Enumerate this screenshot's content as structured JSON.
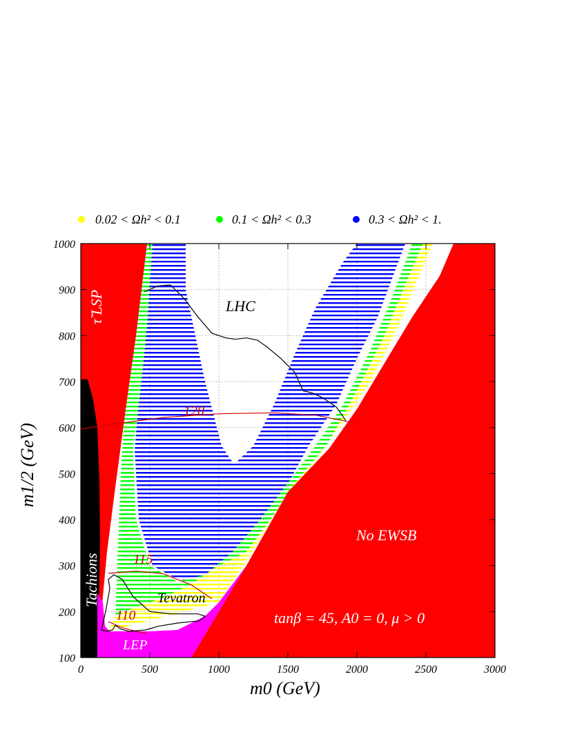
{
  "legend": {
    "items": [
      {
        "label": "0.02 < Ωh² < 0.1",
        "color": "#ffff00"
      },
      {
        "label": "0.1 < Ωh² < 0.3",
        "color": "#00ff00"
      },
      {
        "label": "0.3 < Ωh² < 1.",
        "color": "#0000ff"
      }
    ]
  },
  "chart_data": {
    "type": "area",
    "title": "",
    "xlabel": "m0 (GeV)",
    "ylabel": "m1/2 (GeV)",
    "xlim": [
      0,
      3000
    ],
    "ylim": [
      100,
      1000
    ],
    "x_ticks": [
      0,
      500,
      1000,
      1500,
      2000,
      2500,
      3000
    ],
    "y_ticks": [
      100,
      200,
      300,
      400,
      500,
      600,
      700,
      800,
      900,
      1000
    ],
    "grid": true,
    "legend_position": "top",
    "colors": {
      "excluded": "#ff0000",
      "tachyons": "#000000",
      "lep": "#ff00ff",
      "omega_low": "#ffff00",
      "omega_mid": "#00ff00",
      "omega_high": "#0000ff",
      "higgs_contours": "#cc0000",
      "reach_contours": "#000000"
    },
    "region_labels": {
      "stau_lsp": "τ̃ LSP",
      "tachyons": "Tachions",
      "no_ewsb": "No EWSB",
      "lep": "LEP",
      "lhc": "LHC",
      "tevatron": "Tevatron",
      "parameters": "tanβ = 45, A0 = 0, μ > 0"
    },
    "higgs_mass_contours": [
      {
        "label": "110",
        "points": [
          [
            200,
            178
          ],
          [
            300,
            165
          ],
          [
            400,
            157
          ],
          [
            480,
            153
          ]
        ]
      },
      {
        "label": "115",
        "points": [
          [
            200,
            283
          ],
          [
            400,
            288
          ],
          [
            600,
            282
          ],
          [
            800,
            258
          ],
          [
            950,
            228
          ]
        ]
      },
      {
        "label": "120",
        "points": [
          [
            0,
            597
          ],
          [
            300,
            610
          ],
          [
            600,
            622
          ],
          [
            1000,
            630
          ],
          [
            1400,
            632
          ],
          [
            1700,
            627
          ],
          [
            1950,
            612
          ],
          [
            2000,
            612
          ]
        ]
      }
    ],
    "regions": {
      "stau_lsp": [
        [
          0,
          1000
        ],
        [
          480,
          1000
        ],
        [
          400,
          800
        ],
        [
          330,
          650
        ],
        [
          250,
          470
        ],
        [
          190,
          330
        ],
        [
          150,
          200
        ],
        [
          130,
          100
        ],
        [
          0,
          100
        ]
      ],
      "tachyons": [
        [
          0,
          100
        ],
        [
          120,
          100
        ],
        [
          130,
          200
        ],
        [
          140,
          350
        ],
        [
          135,
          480
        ],
        [
          120,
          600
        ],
        [
          90,
          660
        ],
        [
          50,
          705
        ],
        [
          0,
          705
        ]
      ],
      "no_ewsb": [
        [
          3000,
          1000
        ],
        [
          3000,
          100
        ],
        [
          800,
          100
        ],
        [
          1200,
          300
        ],
        [
          1500,
          460
        ],
        [
          1800,
          555
        ],
        [
          2000,
          640
        ],
        [
          2200,
          740
        ],
        [
          2400,
          840
        ],
        [
          2600,
          930
        ],
        [
          2700,
          1000
        ]
      ],
      "lep": [
        [
          120,
          100
        ],
        [
          800,
          100
        ],
        [
          1200,
          300
        ],
        [
          1000,
          220
        ],
        [
          900,
          190
        ],
        [
          700,
          160
        ],
        [
          500,
          157
        ],
        [
          300,
          157
        ],
        [
          210,
          157
        ],
        [
          175,
          168
        ],
        [
          160,
          220
        ],
        [
          120,
          240
        ]
      ],
      "omega_low": [
        [
          200,
          157
        ],
        [
          1000,
          220
        ],
        [
          1200,
          310
        ],
        [
          1500,
          460
        ],
        [
          1800,
          570
        ],
        [
          2100,
          700
        ],
        [
          2300,
          820
        ],
        [
          2450,
          930
        ],
        [
          2550,
          1000
        ],
        [
          2480,
          1000
        ],
        [
          2350,
          910
        ],
        [
          2200,
          800
        ],
        [
          2000,
          680
        ],
        [
          1780,
          560
        ],
        [
          1550,
          470
        ],
        [
          1350,
          390
        ],
        [
          1200,
          330
        ],
        [
          1000,
          300
        ],
        [
          800,
          260
        ],
        [
          600,
          230
        ],
        [
          400,
          210
        ],
        [
          250,
          190
        ]
      ],
      "omega_mid": [
        [
          250,
          190
        ],
        [
          400,
          210
        ],
        [
          600,
          230
        ],
        [
          800,
          260
        ],
        [
          1000,
          300
        ],
        [
          1200,
          330
        ],
        [
          1350,
          390
        ],
        [
          1550,
          470
        ],
        [
          1780,
          560
        ],
        [
          2000,
          680
        ],
        [
          2200,
          800
        ],
        [
          2350,
          910
        ],
        [
          2480,
          1000
        ],
        [
          2400,
          1000
        ],
        [
          2250,
          880
        ],
        [
          2100,
          770
        ],
        [
          1900,
          650
        ],
        [
          1700,
          560
        ],
        [
          1500,
          480
        ],
        [
          1300,
          400
        ],
        [
          1100,
          330
        ],
        [
          900,
          280
        ],
        [
          700,
          265
        ],
        [
          500,
          300
        ],
        [
          400,
          400
        ],
        [
          380,
          550
        ],
        [
          440,
          700
        ],
        [
          480,
          820
        ],
        [
          520,
          1000
        ],
        [
          450,
          1000
        ],
        [
          400,
          900
        ],
        [
          360,
          780
        ],
        [
          320,
          650
        ],
        [
          290,
          500
        ],
        [
          270,
          350
        ]
      ],
      "omega_high": [
        [
          500,
          1000
        ],
        [
          760,
          1000
        ],
        [
          760,
          900
        ],
        [
          900,
          700
        ],
        [
          1020,
          560
        ],
        [
          1110,
          520
        ],
        [
          1250,
          560
        ],
        [
          1400,
          650
        ],
        [
          1550,
          760
        ],
        [
          1700,
          860
        ],
        [
          1900,
          960
        ],
        [
          2000,
          1000
        ],
        [
          2350,
          1000
        ],
        [
          2300,
          960
        ],
        [
          2150,
          840
        ],
        [
          2000,
          750
        ],
        [
          1850,
          650
        ],
        [
          1650,
          560
        ],
        [
          1450,
          450
        ],
        [
          1250,
          350
        ],
        [
          1100,
          290
        ],
        [
          900,
          265
        ],
        [
          700,
          270
        ],
        [
          520,
          300
        ],
        [
          420,
          400
        ],
        [
          390,
          550
        ],
        [
          430,
          700
        ],
        [
          480,
          850
        ]
      ]
    },
    "reach_contours": [
      {
        "label": "LHC",
        "points": [
          [
            460,
            895
          ],
          [
            560,
            908
          ],
          [
            650,
            910
          ],
          [
            750,
            880
          ],
          [
            850,
            840
          ],
          [
            950,
            805
          ],
          [
            1050,
            795
          ],
          [
            1120,
            792
          ],
          [
            1200,
            795
          ],
          [
            1280,
            790
          ],
          [
            1350,
            775
          ],
          [
            1450,
            750
          ],
          [
            1550,
            720
          ],
          [
            1610,
            680
          ],
          [
            1680,
            675
          ],
          [
            1750,
            665
          ],
          [
            1850,
            645
          ],
          [
            1920,
            615
          ]
        ]
      },
      {
        "label": "Tevatron",
        "points": [
          [
            150,
            160
          ],
          [
            180,
            200
          ],
          [
            210,
            250
          ],
          [
            200,
            270
          ],
          [
            240,
            280
          ],
          [
            300,
            270
          ],
          [
            380,
            232
          ],
          [
            500,
            200
          ],
          [
            650,
            195
          ],
          [
            850,
            195
          ],
          [
            900,
            190
          ],
          [
            860,
            180
          ],
          [
            700,
            175
          ],
          [
            560,
            168
          ],
          [
            470,
            160
          ],
          [
            350,
            157
          ],
          [
            290,
            162
          ],
          [
            250,
            170
          ],
          [
            230,
            160
          ],
          [
            190,
            157
          ]
        ]
      }
    ]
  }
}
